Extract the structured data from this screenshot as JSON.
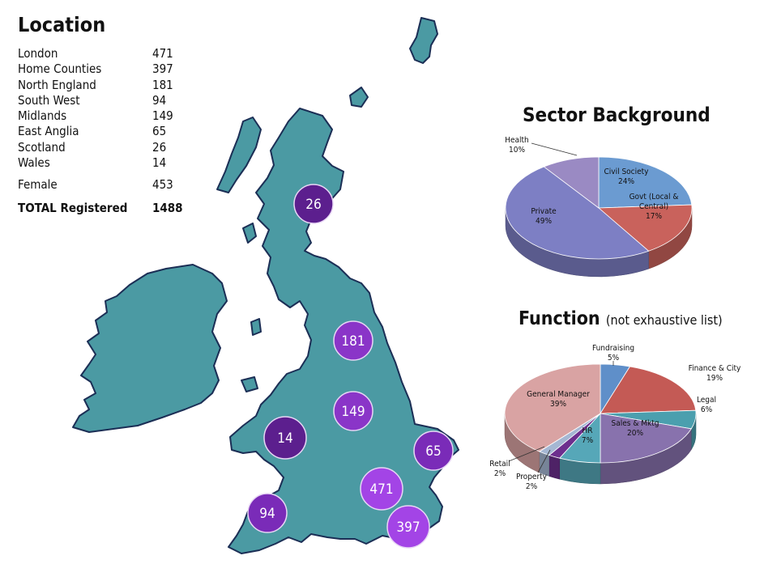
{
  "location": {
    "title": "Location",
    "rows": [
      {
        "name": "London",
        "value": "471"
      },
      {
        "name": "Home Counties",
        "value": "397"
      },
      {
        "name": "North England",
        "value": "181"
      },
      {
        "name": "South West",
        "value": "94"
      },
      {
        "name": "Midlands",
        "value": "149"
      },
      {
        "name": "East Anglia",
        "value": "65"
      },
      {
        "name": "Scotland",
        "value": "26"
      },
      {
        "name": "Wales",
        "value": "14"
      }
    ],
    "female": {
      "name": "Female",
      "value": "453"
    },
    "total": {
      "name": "TOTAL Registered",
      "value": "1488"
    }
  },
  "map": {
    "land_color": "#4b9aa3",
    "bubbles": [
      {
        "region": "Scotland",
        "label": "26",
        "color": "#5c1f8e"
      },
      {
        "region": "North England",
        "label": "181",
        "color": "#8a35c8"
      },
      {
        "region": "Midlands",
        "label": "149",
        "color": "#8a35c8"
      },
      {
        "region": "Wales",
        "label": "14",
        "color": "#5c1f8e"
      },
      {
        "region": "East Anglia",
        "label": "65",
        "color": "#7a2bb8"
      },
      {
        "region": "London",
        "label": "471",
        "color": "#a344e6"
      },
      {
        "region": "South West",
        "label": "94",
        "color": "#7a2bb8"
      },
      {
        "region": "Home Counties",
        "label": "397",
        "color": "#a344e6"
      }
    ]
  },
  "chart_data": [
    {
      "type": "pie",
      "title": "Sector Background",
      "slices": [
        {
          "label": "Civil Society",
          "value": 24,
          "pct_label": "24%",
          "color": "#6b9bd1"
        },
        {
          "label": "Govt (Local & Central)",
          "value": 17,
          "pct_label": "17%",
          "color": "#c9625c"
        },
        {
          "label": "Private",
          "value": 49,
          "pct_label": "49%",
          "color": "#7d7fc4"
        },
        {
          "label": "Health",
          "value": 10,
          "pct_label": "10%",
          "color": "#9a8ac3"
        }
      ]
    },
    {
      "type": "pie",
      "title": "Function",
      "subtitle": "(not exhaustive list)",
      "slices": [
        {
          "label": "Fundraising",
          "value": 5,
          "pct_label": "5%",
          "color": "#5f8fc9"
        },
        {
          "label": "Finance & City",
          "value": 19,
          "pct_label": "19%",
          "color": "#c45a55"
        },
        {
          "label": "Legal",
          "value": 6,
          "pct_label": "6%",
          "color": "#4b9fae"
        },
        {
          "label": "Sales & Mktg",
          "value": 20,
          "pct_label": "20%",
          "color": "#8872ad"
        },
        {
          "label": "HR",
          "value": 7,
          "pct_label": "7%",
          "color": "#56a7b8"
        },
        {
          "label": "Property",
          "value": 2,
          "pct_label": "2%",
          "color": "#6d2f8e"
        },
        {
          "label": "Retail",
          "value": 2,
          "pct_label": "2%",
          "color": "#a5b7d3"
        },
        {
          "label": "General Manager",
          "value": 39,
          "pct_label": "39%",
          "color": "#d9a3a3"
        }
      ]
    }
  ]
}
